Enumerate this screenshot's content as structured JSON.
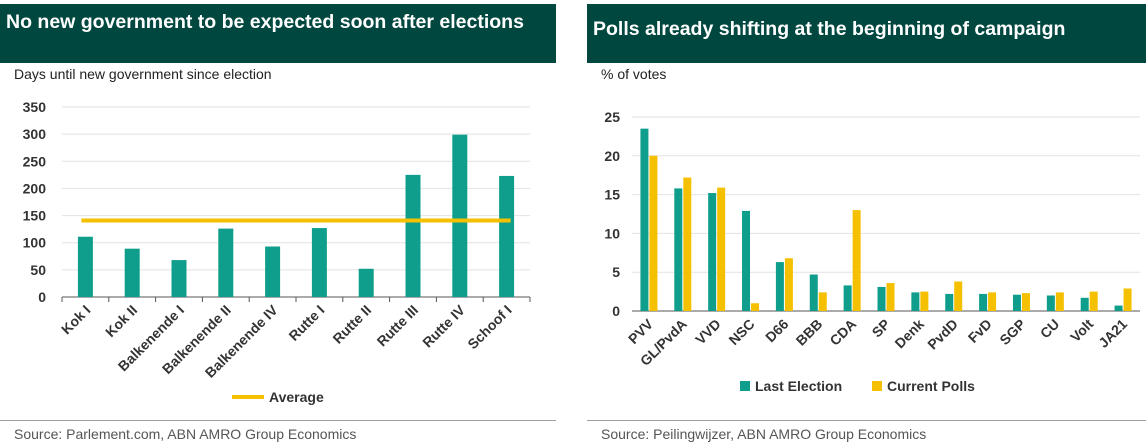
{
  "left_panel": {
    "title": "No new government to be expected soon after elections",
    "subtitle": "Days until new government since election",
    "source": "Source: Parlement.com, ABN AMRO Group Economics"
  },
  "right_panel": {
    "title": "Polls already shifting at the beginning of campaign",
    "subtitle": "% of votes",
    "source": "Source: Peilingwijzer, ABN AMRO Group Economics"
  },
  "colors": {
    "teal": "#0f9e8c",
    "yellow": "#f5c000",
    "header": "#00473f"
  },
  "chart_data": [
    {
      "type": "bar",
      "title": "No new government to be expected soon after elections",
      "ylabel": "Days until new government since election",
      "categories": [
        "Kok I",
        "Kok II",
        "Balkenende I",
        "Balkenende II",
        "Balkenende IV",
        "Rutte I",
        "Rutte II",
        "Rutte III",
        "Rutte IV",
        "Schoof I"
      ],
      "series": [
        {
          "name": "",
          "color": "#0f9e8c",
          "values": [
            111,
            89,
            68,
            126,
            93,
            127,
            52,
            225,
            299,
            223
          ]
        }
      ],
      "reference_line": {
        "name": "Average",
        "value": 141,
        "color": "#f5c000"
      },
      "ylim": [
        0,
        350
      ],
      "yticks": [
        0,
        50,
        100,
        150,
        200,
        250,
        300,
        350
      ],
      "grid": true,
      "legend": "bottom-center"
    },
    {
      "type": "bar",
      "title": "Polls already shifting at the beginning of campaign",
      "ylabel": "% of votes",
      "categories": [
        "PVV",
        "GL/PvdA",
        "VVD",
        "NSC",
        "D66",
        "BBB",
        "CDA",
        "SP",
        "Denk",
        "PvdD",
        "FvD",
        "SGP",
        "CU",
        "Volt",
        "JA21"
      ],
      "series": [
        {
          "name": "Last Election",
          "color": "#0f9e8c",
          "values": [
            23.5,
            15.8,
            15.2,
            12.9,
            6.3,
            4.7,
            3.3,
            3.1,
            2.4,
            2.2,
            2.2,
            2.1,
            2.0,
            1.7,
            0.7
          ]
        },
        {
          "name": "Current Polls",
          "color": "#f5c000",
          "values": [
            20.0,
            17.2,
            15.9,
            1.0,
            6.8,
            2.4,
            13.0,
            3.6,
            2.5,
            3.8,
            2.4,
            2.3,
            2.4,
            2.5,
            2.9
          ]
        }
      ],
      "ylim": [
        0,
        25
      ],
      "yticks": [
        0,
        5,
        10,
        15,
        20,
        25
      ],
      "grid": true,
      "legend": "bottom-center"
    }
  ]
}
